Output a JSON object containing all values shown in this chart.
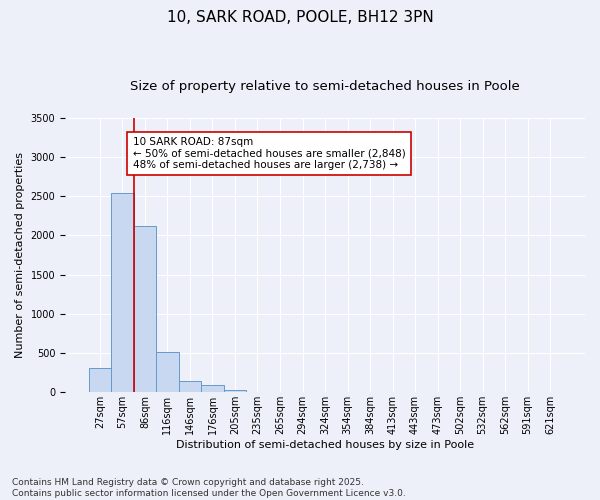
{
  "title_line1": "10, SARK ROAD, POOLE, BH12 3PN",
  "title_line2": "Size of property relative to semi-detached houses in Poole",
  "xlabel": "Distribution of semi-detached houses by size in Poole",
  "ylabel": "Number of semi-detached properties",
  "categories": [
    "27sqm",
    "57sqm",
    "86sqm",
    "116sqm",
    "146sqm",
    "176sqm",
    "205sqm",
    "235sqm",
    "265sqm",
    "294sqm",
    "324sqm",
    "354sqm",
    "384sqm",
    "413sqm",
    "443sqm",
    "473sqm",
    "502sqm",
    "532sqm",
    "562sqm",
    "591sqm",
    "621sqm"
  ],
  "values": [
    310,
    2540,
    2120,
    510,
    150,
    90,
    30,
    5,
    2,
    1,
    0,
    0,
    0,
    0,
    0,
    0,
    0,
    0,
    0,
    0,
    0
  ],
  "bar_color": "#c8d8f0",
  "bar_edge_color": "#6699cc",
  "vline_color": "#cc0000",
  "vline_pos": 1.5,
  "annotation_text": "10 SARK ROAD: 87sqm\n← 50% of semi-detached houses are smaller (2,848)\n48% of semi-detached houses are larger (2,738) →",
  "annotation_box_color": "#ffffff",
  "annotation_box_edge_color": "#cc0000",
  "ylim": [
    0,
    3500
  ],
  "background_color": "#edf0f9",
  "grid_color": "#ffffff",
  "footer_line1": "Contains HM Land Registry data © Crown copyright and database right 2025.",
  "footer_line2": "Contains public sector information licensed under the Open Government Licence v3.0.",
  "title_fontsize": 11,
  "subtitle_fontsize": 9.5,
  "axis_label_fontsize": 8,
  "tick_fontsize": 7,
  "annotation_fontsize": 7.5,
  "footer_fontsize": 6.5
}
